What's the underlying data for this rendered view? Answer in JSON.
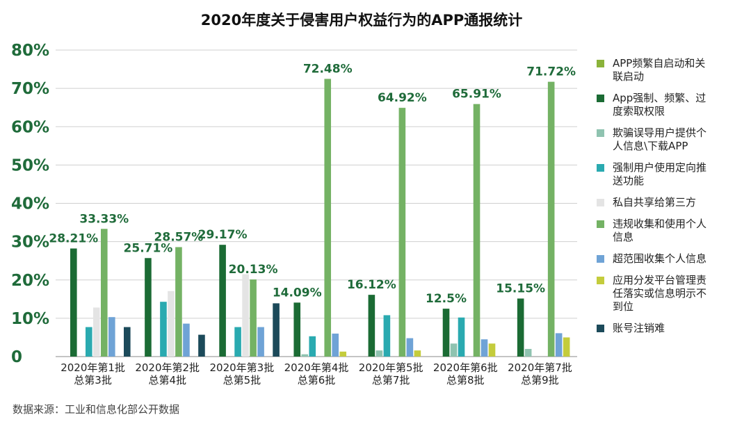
{
  "chart_data": {
    "type": "bar",
    "title": "2020年度关于侵害用户权益行为的APP通报统计",
    "source": "数据来源：工业和信息化部公开数据",
    "ylim": [
      0,
      80
    ],
    "yticks": [
      "0",
      "10%",
      "20%",
      "30%",
      "40%",
      "50%",
      "60%",
      "70%",
      "80%"
    ],
    "grid": true,
    "legend_position": "right",
    "categories": [
      [
        "2020年第1批",
        "总第3批"
      ],
      [
        "2020年第2批",
        "总第4批"
      ],
      [
        "2020年第3批",
        "总第5批"
      ],
      [
        "2020年第4批",
        "总第6批"
      ],
      [
        "2020年第5批",
        "总第7批"
      ],
      [
        "2020年第6批",
        "总第8批"
      ],
      [
        "2020年第7批",
        "总第9批"
      ]
    ],
    "series": [
      {
        "name": [
          "APP频繁自启动和关",
          "联启动"
        ],
        "color": "#8bb33a",
        "values": [
          0,
          0,
          0,
          0,
          0,
          0,
          0
        ]
      },
      {
        "name": [
          "App强制、频繁、过",
          "度索取权限"
        ],
        "color": "#1b6b34",
        "values": [
          28.21,
          25.71,
          29.17,
          14.09,
          16.12,
          12.5,
          15.15
        ]
      },
      {
        "name": [
          "欺骗误导用户提供个",
          "人信息\\下载APP"
        ],
        "color": "#8fc3b0",
        "values": [
          0,
          0,
          0,
          0.6,
          1.6,
          3.4,
          2.0
        ]
      },
      {
        "name": [
          "强制用户使用定向推",
          "送功能"
        ],
        "color": "#2aaab0",
        "values": [
          7.7,
          14.3,
          7.7,
          5.3,
          10.8,
          10.2,
          0
        ]
      },
      {
        "name": [
          "私自共享给第三方"
        ],
        "color": "#e4e4e4",
        "values": [
          12.8,
          17.1,
          21.5,
          0,
          0,
          0,
          0
        ]
      },
      {
        "name": [
          "违规收集和使用个人",
          "信息"
        ],
        "color": "#74b264",
        "values": [
          33.33,
          28.57,
          20.13,
          72.48,
          64.92,
          65.91,
          71.72
        ]
      },
      {
        "name": [
          "超范围收集个人信息"
        ],
        "color": "#6fa3d6",
        "values": [
          10.3,
          8.6,
          7.7,
          6.0,
          4.8,
          4.5,
          6.1
        ]
      },
      {
        "name": [
          "应用分发平台管理责",
          "任落实或信息明示不",
          "到位"
        ],
        "color": "#c4cc3c",
        "values": [
          0,
          0,
          0,
          1.3,
          1.6,
          3.4,
          5.0
        ]
      },
      {
        "name": [
          "账号注销难"
        ],
        "color": "#1c4a5a",
        "values": [
          7.7,
          5.7,
          13.9,
          0,
          0,
          0,
          0
        ]
      }
    ],
    "data_labels": [
      {
        "group": 0,
        "series": 1,
        "text": "28.21%"
      },
      {
        "group": 0,
        "series": 5,
        "text": "33.33%"
      },
      {
        "group": 1,
        "series": 1,
        "text": "25.71%"
      },
      {
        "group": 1,
        "series": 5,
        "text": "28.57%"
      },
      {
        "group": 2,
        "series": 1,
        "text": "29.17%"
      },
      {
        "group": 2,
        "series": 5,
        "text": "20.13%"
      },
      {
        "group": 3,
        "series": 1,
        "text": "14.09%"
      },
      {
        "group": 3,
        "series": 5,
        "text": "72.48%"
      },
      {
        "group": 4,
        "series": 1,
        "text": "16.12%"
      },
      {
        "group": 4,
        "series": 5,
        "text": "64.92%"
      },
      {
        "group": 5,
        "series": 1,
        "text": "12.5%"
      },
      {
        "group": 5,
        "series": 5,
        "text": "65.91%"
      },
      {
        "group": 6,
        "series": 1,
        "text": "15.15%"
      },
      {
        "group": 6,
        "series": 5,
        "text": "71.72%"
      }
    ]
  }
}
